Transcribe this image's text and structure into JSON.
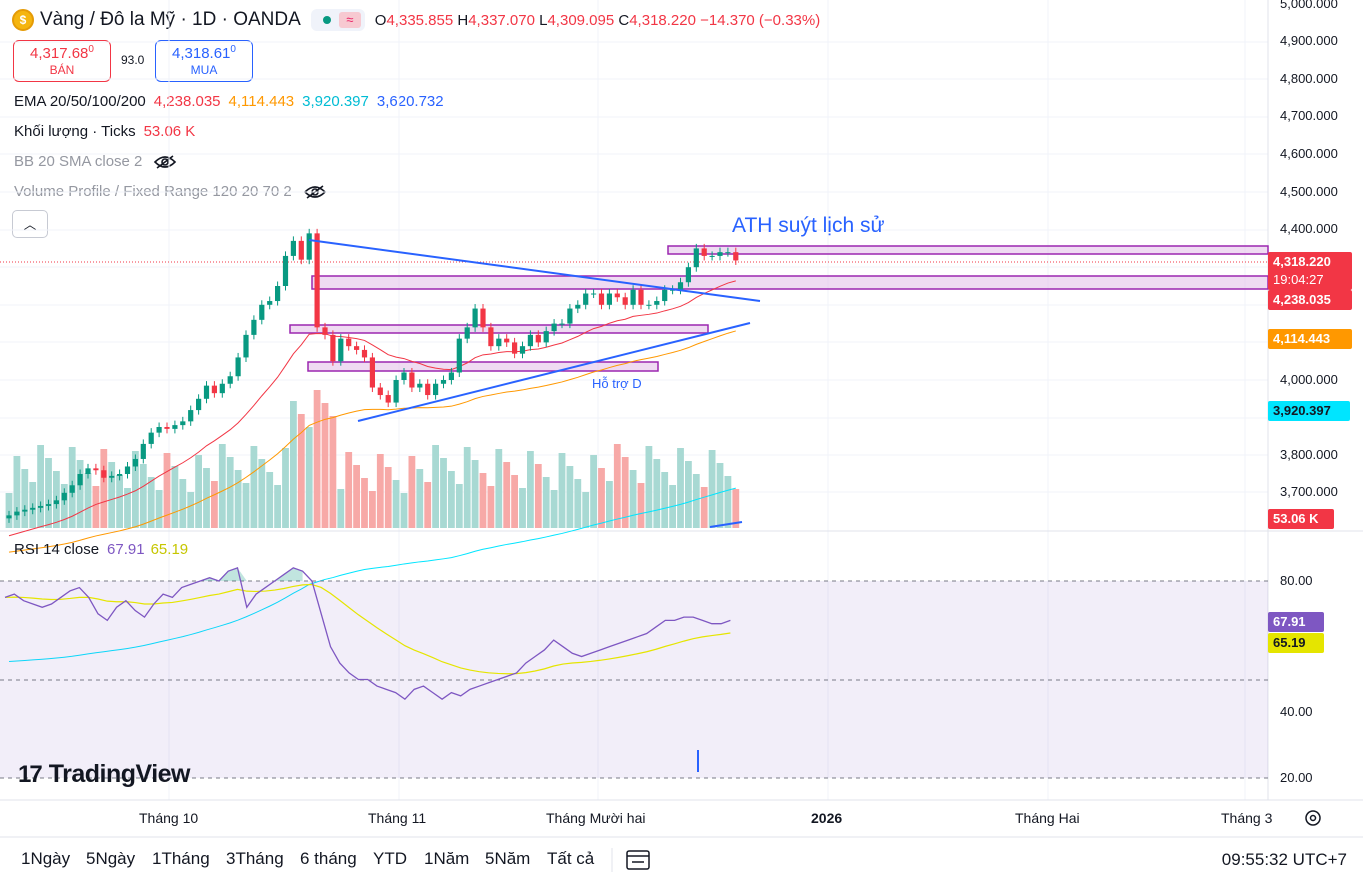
{
  "header": {
    "symbol_title": "Vàng / Đô la Mỹ · 1D · OANDA",
    "logo_icon": "gold-coin-icon",
    "ohlc": {
      "o_label": "O",
      "o_value": "4,335.855",
      "h_label": "H",
      "h_value": "4,337.070",
      "l_label": "L",
      "l_value": "4,309.095",
      "c_label": "C",
      "c_value": "4,318.220",
      "change": "−14.370 (−0.33%)"
    }
  },
  "trade": {
    "sell_price": "4,317.68",
    "sell_sup": "0",
    "sell_label": "BÁN",
    "spread": "93.0",
    "buy_price": "4,318.61",
    "buy_sup": "0",
    "buy_label": "MUA"
  },
  "indicators": {
    "ema_label": "EMA 20/50/100/200",
    "ema20": "4,238.035",
    "ema50": "4,114.443",
    "ema100": "3,920.397",
    "ema200": "3,620.732",
    "volume_label": "Khối lượng · Ticks",
    "volume_value": "53.06 K",
    "bb_label": "BB 20 SMA close 2",
    "vp_label": "Volume Profile / Fixed Range 120 20 70 2"
  },
  "annotations": {
    "ath_text": "ATH suýt lịch sử",
    "support_text": "Hỗ trợ D"
  },
  "price_scale": {
    "ticks": [
      "5,000.000",
      "4,900.000",
      "4,800.000",
      "4,700.000",
      "4,600.000",
      "4,500.000",
      "4,400.000",
      "4,000.000",
      "3,800.000",
      "3,700.000"
    ],
    "last_price": "4,318.220",
    "countdown": "19:04:27",
    "ema20_label": "4,238.035",
    "ema50_label": "4,114.443",
    "ema100_label": "3,920.397",
    "volume_label": "53.06 K"
  },
  "rsi": {
    "label": "RSI 14 close",
    "value": "67.91",
    "ma_value": "65.19",
    "ticks": [
      "80.00",
      "40.00",
      "20.00"
    ]
  },
  "time_axis": [
    "Tháng 10",
    "Tháng 11",
    "Tháng Mười hai",
    "2026",
    "Tháng Hai",
    "Tháng 3"
  ],
  "timeframes": [
    "1Ngày",
    "5Ngày",
    "1Tháng",
    "3Tháng",
    "6 tháng",
    "YTD",
    "1Năm",
    "5Năm",
    "Tất cả"
  ],
  "clock": "09:55:32 UTC+7",
  "brand": "TradingView",
  "colors": {
    "up": "#089981",
    "down": "#f23645",
    "ema20": "#f23645",
    "ema50": "#ff9800",
    "ema100": "#00e5ff",
    "ema200": "#2962ff",
    "rsi": "#7e57c2",
    "rsi_ma": "#e5e500",
    "zone": "#9c27b0"
  }
}
